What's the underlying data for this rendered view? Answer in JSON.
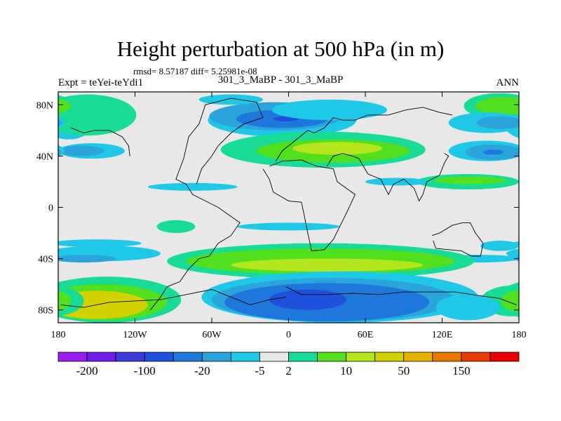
{
  "chart_data": {
    "type": "heatmap",
    "title": "Height perturbation at 500 hPa (in m)",
    "stats_line": "rmsd= 8.57187 diff= 5.25981e-08",
    "left_label": "Expt = teYei-teYdi1",
    "center_label": "301_3_MaBP - 301_3_MaBP",
    "right_label": "ANN",
    "x_ticks": [
      {
        "value": -180,
        "label": "180"
      },
      {
        "value": -120,
        "label": "120W"
      },
      {
        "value": -60,
        "label": "60W"
      },
      {
        "value": 0,
        "label": "0"
      },
      {
        "value": 60,
        "label": "60E"
      },
      {
        "value": 120,
        "label": "120E"
      },
      {
        "value": 180,
        "label": "180"
      }
    ],
    "y_ticks": [
      {
        "value": 80,
        "label": "80N"
      },
      {
        "value": 40,
        "label": "40N"
      },
      {
        "value": 0,
        "label": "0"
      },
      {
        "value": -40,
        "label": "40S"
      },
      {
        "value": -80,
        "label": "80S"
      }
    ],
    "xlim": [
      -180,
      180
    ],
    "ylim": [
      -90,
      90
    ],
    "colorbar": {
      "colors": [
        "#9a1ef0",
        "#6e1ee6",
        "#3c3cdc",
        "#1e50dc",
        "#1e78dc",
        "#2ba4dc",
        "#1ec8e6",
        "#e8e8e8",
        "#18dc96",
        "#52e01e",
        "#b4e61e",
        "#d2d200",
        "#e6b400",
        "#e67800",
        "#e63c00",
        "#e60000"
      ],
      "labels": [
        "-200",
        "-100",
        "-20",
        "-5",
        "2",
        "10",
        "50",
        "150"
      ],
      "label_boundaries": [
        1,
        3,
        5,
        7,
        8,
        10,
        12,
        14
      ]
    },
    "regions": [
      {
        "level": 6,
        "lon": -172,
        "lat": 66,
        "rx": 20,
        "ry": 13
      },
      {
        "level": 7,
        "lon": -165,
        "lat": 75,
        "rx": 22,
        "ry": 9
      },
      {
        "level": 11,
        "lon": -165,
        "lat": 72,
        "rx": 24,
        "ry": 10
      },
      {
        "level": 9,
        "lon": -162,
        "lat": 72,
        "rx": 30,
        "ry": 12
      },
      {
        "level": 8,
        "lon": -157,
        "lat": 72,
        "rx": 38,
        "ry": 16
      },
      {
        "level": 6,
        "lon": -45,
        "lat": 84,
        "rx": 25,
        "ry": 4
      },
      {
        "level": 6,
        "lon": -5,
        "lat": 68,
        "rx": 58,
        "ry": 13
      },
      {
        "level": 5,
        "lon": -10,
        "lat": 71,
        "rx": 52,
        "ry": 11
      },
      {
        "level": 4,
        "lon": -5,
        "lat": 69,
        "rx": 36,
        "ry": 7
      },
      {
        "level": 3,
        "lon": -2,
        "lat": 69,
        "rx": 10,
        "ry": 2
      },
      {
        "level": 6,
        "lon": 32,
        "lat": 76,
        "rx": 45,
        "ry": 8
      },
      {
        "level": 8,
        "lon": 27,
        "lat": 45,
        "rx": 80,
        "ry": 14
      },
      {
        "level": 9,
        "lon": 35,
        "lat": 44,
        "rx": 60,
        "ry": 9
      },
      {
        "level": 10,
        "lon": 38,
        "lat": 46,
        "rx": 35,
        "ry": 5
      },
      {
        "level": 6,
        "lon": -154,
        "lat": 44,
        "rx": 26,
        "ry": 6
      },
      {
        "level": 5,
        "lon": -162,
        "lat": 44,
        "rx": 18,
        "ry": 4
      },
      {
        "level": 6,
        "lon": 155,
        "lat": 44,
        "rx": 30,
        "ry": 8
      },
      {
        "level": 5,
        "lon": 160,
        "lat": 43,
        "rx": 22,
        "ry": 6
      },
      {
        "level": 4,
        "lon": 160,
        "lat": 43,
        "rx": 8,
        "ry": 2
      },
      {
        "level": 8,
        "lon": 165,
        "lat": 79,
        "rx": 28,
        "ry": 10
      },
      {
        "level": 9,
        "lon": 168,
        "lat": 79,
        "rx": 22,
        "ry": 7
      },
      {
        "level": 6,
        "lon": 155,
        "lat": 66,
        "rx": 30,
        "ry": 8
      },
      {
        "level": 5,
        "lon": 165,
        "lat": 66,
        "rx": 18,
        "ry": 5
      },
      {
        "level": 8,
        "lon": 140,
        "lat": 20,
        "rx": 40,
        "ry": 6
      },
      {
        "level": 9,
        "lon": 142,
        "lat": 21,
        "rx": 28,
        "ry": 3
      },
      {
        "level": 6,
        "lon": 85,
        "lat": 20,
        "rx": 25,
        "ry": 3
      },
      {
        "level": 6,
        "lon": -75,
        "lat": 16,
        "rx": 35,
        "ry": 3
      },
      {
        "level": 8,
        "lon": -88,
        "lat": -15,
        "rx": 15,
        "ry": 5
      },
      {
        "level": 6,
        "lon": 0,
        "lat": -15,
        "rx": 40,
        "ry": 3
      },
      {
        "level": 6,
        "lon": -150,
        "lat": -28,
        "rx": 35,
        "ry": 3
      },
      {
        "level": 6,
        "lon": -145,
        "lat": -36,
        "rx": 45,
        "ry": 6
      },
      {
        "level": 5,
        "lon": -160,
        "lat": -40,
        "rx": 25,
        "ry": 3
      },
      {
        "level": 6,
        "lon": 165,
        "lat": -30,
        "rx": 15,
        "ry": 4
      },
      {
        "level": 6,
        "lon": 150,
        "lat": -40,
        "rx": 30,
        "ry": 3
      },
      {
        "level": 8,
        "lon": 25,
        "lat": -42,
        "rx": 120,
        "ry": 14
      },
      {
        "level": 9,
        "lon": 25,
        "lat": -42,
        "rx": 105,
        "ry": 10
      },
      {
        "level": 10,
        "lon": 30,
        "lat": -45,
        "rx": 75,
        "ry": 5
      },
      {
        "level": 8,
        "lon": 68,
        "lat": -62,
        "rx": 52,
        "ry": 9
      },
      {
        "level": 9,
        "lon": 68,
        "lat": -61,
        "rx": 42,
        "ry": 6
      },
      {
        "level": 11,
        "lon": 80,
        "lat": -60,
        "rx": 4,
        "ry": 1
      },
      {
        "level": 6,
        "lon": 40,
        "lat": -70,
        "rx": 108,
        "ry": 20
      },
      {
        "level": 5,
        "lon": 35,
        "lat": -72,
        "rx": 95,
        "ry": 17
      },
      {
        "level": 4,
        "lon": 30,
        "lat": -74,
        "rx": 80,
        "ry": 15
      },
      {
        "level": 3,
        "lon": 15,
        "lat": -72,
        "rx": 30,
        "ry": 8
      },
      {
        "level": 8,
        "lon": -142,
        "lat": -72,
        "rx": 58,
        "ry": 18
      },
      {
        "level": 9,
        "lon": -145,
        "lat": -74,
        "rx": 50,
        "ry": 14
      },
      {
        "level": 11,
        "lon": -150,
        "lat": -76,
        "rx": 40,
        "ry": 11
      },
      {
        "level": 8,
        "lon": 175,
        "lat": -73,
        "rx": 25,
        "ry": 12
      },
      {
        "level": 9,
        "lon": 178,
        "lat": -73,
        "rx": 12,
        "ry": 8
      },
      {
        "level": 6,
        "lon": 140,
        "lat": -78,
        "rx": 25,
        "ry": 10
      }
    ],
    "coastlines": [
      [
        [
          -108,
          -80
        ],
        [
          -100,
          -70
        ],
        [
          -95,
          -62
        ],
        [
          -85,
          -58
        ],
        [
          -78,
          -48
        ],
        [
          -70,
          -40
        ],
        [
          -62,
          -38
        ],
        [
          -55,
          -28
        ],
        [
          -45,
          -22
        ],
        [
          -38,
          -12
        ],
        [
          -48,
          -5
        ],
        [
          -55,
          0
        ],
        [
          -65,
          5
        ],
        [
          -75,
          10
        ],
        [
          -80,
          18
        ],
        [
          -88,
          22
        ],
        [
          -82,
          38
        ],
        [
          -78,
          55
        ],
        [
          -70,
          65
        ],
        [
          -65,
          80
        ],
        [
          -45,
          85
        ],
        [
          -25,
          82
        ],
        [
          -20,
          70
        ],
        [
          -35,
          65
        ],
        [
          -45,
          58
        ],
        [
          -55,
          48
        ],
        [
          -60,
          40
        ],
        [
          -68,
          30
        ],
        [
          -72,
          18
        ]
      ],
      [
        [
          -20,
          30
        ],
        [
          -15,
          22
        ],
        [
          -12,
          12
        ],
        [
          0,
          5
        ],
        [
          10,
          4
        ],
        [
          12,
          -5
        ],
        [
          15,
          -20
        ],
        [
          18,
          -34
        ],
        [
          28,
          -33
        ],
        [
          35,
          -25
        ],
        [
          40,
          -15
        ],
        [
          45,
          -5
        ],
        [
          52,
          10
        ],
        [
          45,
          15
        ],
        [
          38,
          20
        ],
        [
          35,
          30
        ],
        [
          22,
          32
        ],
        [
          10,
          37
        ],
        [
          -5,
          36
        ],
        [
          -15,
          32
        ]
      ],
      [
        [
          -10,
          36
        ],
        [
          -5,
          44
        ],
        [
          0,
          48
        ],
        [
          5,
          52
        ],
        [
          10,
          56
        ],
        [
          15,
          60
        ],
        [
          20,
          58
        ],
        [
          28,
          62
        ],
        [
          35,
          70
        ],
        [
          42,
          68
        ],
        [
          52,
          68
        ],
        [
          62,
          72
        ],
        [
          78,
          72
        ],
        [
          92,
          76
        ],
        [
          105,
          78
        ],
        [
          118,
          74
        ],
        [
          128,
          72
        ]
      ],
      [
        [
          30,
          32
        ],
        [
          35,
          40
        ],
        [
          42,
          42
        ],
        [
          50,
          40
        ],
        [
          55,
          38
        ],
        [
          62,
          26
        ],
        [
          72,
          22
        ],
        [
          78,
          10
        ],
        [
          82,
          18
        ],
        [
          90,
          22
        ],
        [
          98,
          15
        ],
        [
          102,
          5
        ],
        [
          105,
          10
        ],
        [
          108,
          20
        ],
        [
          118,
          25
        ],
        [
          122,
          35
        ],
        [
          125,
          40
        ],
        [
          122,
          42
        ]
      ],
      [
        [
          112,
          -22
        ],
        [
          118,
          -20
        ],
        [
          128,
          -14
        ],
        [
          136,
          -12
        ],
        [
          142,
          -12
        ],
        [
          146,
          -20
        ],
        [
          152,
          -28
        ],
        [
          150,
          -38
        ],
        [
          143,
          -38
        ],
        [
          135,
          -34
        ],
        [
          125,
          -33
        ],
        [
          115,
          -32
        ],
        [
          113,
          -26
        ]
      ],
      [
        [
          -170,
          62
        ],
        [
          -160,
          58
        ],
        [
          -152,
          60
        ],
        [
          -140,
          60
        ],
        [
          -130,
          55
        ],
        [
          -125,
          48
        ],
        [
          -124,
          40
        ]
      ],
      [
        [
          -2,
          -62
        ],
        [
          10,
          -68
        ],
        [
          30,
          -68
        ],
        [
          50,
          -67
        ],
        [
          70,
          -68
        ],
        [
          90,
          -66
        ],
        [
          110,
          -66
        ],
        [
          130,
          -66
        ],
        [
          150,
          -69
        ],
        [
          165,
          -71
        ],
        [
          178,
          -76
        ]
      ],
      [
        [
          -178,
          -76
        ],
        [
          -160,
          -78
        ],
        [
          -140,
          -74
        ],
        [
          -120,
          -73
        ],
        [
          -100,
          -72
        ],
        [
          -80,
          -68
        ],
        [
          -60,
          -64
        ],
        [
          -45,
          -70
        ],
        [
          -30,
          -76
        ],
        [
          -15,
          -72
        ],
        [
          -2,
          -70
        ]
      ]
    ]
  }
}
